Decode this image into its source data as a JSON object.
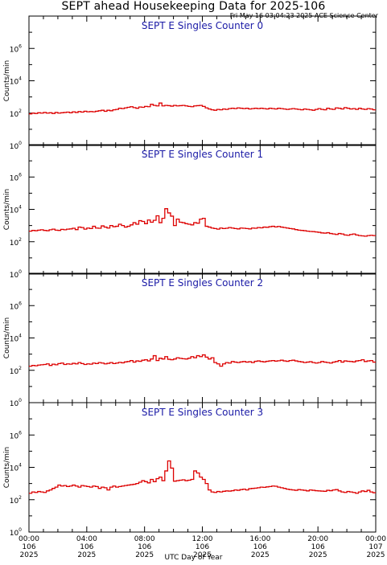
{
  "header": {
    "title": "SEPT ahead Housekeeping Data for 2025-106",
    "subtitle": "Fri May 16 03:04:23 2025 ACE Science Center"
  },
  "xaxis_label": "UTC Day of Year",
  "colors": {
    "series": "#dd0000",
    "panel_title": "#1a1aa6",
    "axes": "#000000"
  },
  "chart_data": [
    {
      "type": "line",
      "title": "SEPT E Singles Counter 0",
      "ylabel": "Counts/min",
      "yscale": "log",
      "ylim": [
        1,
        100000000
      ],
      "yticks": [
        {
          "exp": "0"
        },
        {
          "exp": "2"
        },
        {
          "exp": "4"
        },
        {
          "exp": "6"
        }
      ],
      "xlim": [
        0,
        24
      ],
      "xtick_labels": [
        [
          "00:00",
          "106",
          "2025"
        ],
        [
          "04:00",
          "106",
          "2025"
        ],
        [
          "08:00",
          "106",
          "2025"
        ],
        [
          "12:00",
          "106",
          "2025"
        ],
        [
          "16:00",
          "106",
          "2025"
        ],
        [
          "20:00",
          "106",
          "2025"
        ],
        [
          "00:00",
          "107",
          "2025"
        ]
      ],
      "series": [
        {
          "values": [
            90,
            100,
            95,
            105,
            100,
            110,
            100,
            105,
            95,
            110,
            100,
            105,
            110,
            115,
            105,
            120,
            110,
            125,
            115,
            130,
            120,
            125,
            120,
            130,
            140,
            150,
            130,
            150,
            140,
            160,
            170,
            200,
            190,
            210,
            230,
            250,
            220,
            200,
            240,
            230,
            260,
            250,
            350,
            300,
            280,
            420,
            280,
            300,
            290,
            270,
            300,
            280,
            290,
            300,
            280,
            260,
            250,
            280,
            290,
            300,
            260,
            210,
            180,
            160,
            150,
            170,
            160,
            180,
            170,
            190,
            200,
            190,
            210,
            200,
            190,
            200,
            180,
            190,
            200,
            190,
            200,
            190,
            180,
            200,
            190,
            180,
            200,
            190,
            180,
            170,
            180,
            190,
            180,
            170,
            160,
            180,
            170,
            160,
            150,
            170,
            190,
            170,
            160,
            200,
            180,
            170,
            210,
            200,
            180,
            220,
            200,
            180,
            190,
            170,
            200,
            180,
            170,
            190,
            180,
            160
          ]
        }
      ]
    },
    {
      "type": "line",
      "title": "SEPT E Singles Counter 1",
      "ylabel": "Counts/min",
      "yscale": "log",
      "ylim": [
        1,
        100000000
      ],
      "yticks": [
        {
          "exp": "0"
        },
        {
          "exp": "2"
        },
        {
          "exp": "4"
        },
        {
          "exp": "6"
        }
      ],
      "xlim": [
        0,
        24
      ],
      "xtick_labels": [
        [
          "00:00",
          "106",
          "2025"
        ],
        [
          "04:00",
          "106",
          "2025"
        ],
        [
          "08:00",
          "106",
          "2025"
        ],
        [
          "12:00",
          "106",
          "2025"
        ],
        [
          "16:00",
          "106",
          "2025"
        ],
        [
          "20:00",
          "106",
          "2025"
        ],
        [
          "00:00",
          "107",
          "2025"
        ]
      ],
      "series": [
        {
          "values": [
            450,
            500,
            480,
            520,
            550,
            500,
            480,
            550,
            600,
            520,
            500,
            580,
            550,
            600,
            620,
            680,
            560,
            800,
            750,
            600,
            700,
            650,
            900,
            700,
            680,
            950,
            800,
            700,
            1000,
            850,
            900,
            1200,
            1000,
            800,
            900,
            1100,
            1500,
            1200,
            2000,
            1800,
            1300,
            2200,
            1600,
            2100,
            4000,
            1500,
            2800,
            11000,
            6000,
            3800,
            1000,
            2500,
            1600,
            1500,
            1300,
            1200,
            1100,
            1500,
            1400,
            2500,
            2800,
            900,
            800,
            700,
            650,
            600,
            700,
            650,
            680,
            750,
            700,
            650,
            620,
            700,
            680,
            650,
            620,
            700,
            680,
            750,
            720,
            800,
            780,
            850,
            900,
            820,
            880,
            800,
            750,
            700,
            650,
            620,
            560,
            520,
            500,
            480,
            450,
            430,
            420,
            400,
            380,
            350,
            340,
            360,
            320,
            300,
            280,
            320,
            300,
            260,
            250,
            280,
            300,
            260,
            240,
            230,
            220,
            240,
            250,
            240
          ]
        }
      ]
    },
    {
      "type": "line",
      "title": "SEPT E Singles Counter 2",
      "ylabel": "Counts/min",
      "yscale": "log",
      "ylim": [
        1,
        100000000
      ],
      "yticks": [
        {
          "exp": "0"
        },
        {
          "exp": "2"
        },
        {
          "exp": "4"
        },
        {
          "exp": "6"
        }
      ],
      "xlim": [
        0,
        24
      ],
      "xtick_labels": [
        [
          "00:00",
          "106",
          "2025"
        ],
        [
          "04:00",
          "106",
          "2025"
        ],
        [
          "08:00",
          "106",
          "2025"
        ],
        [
          "12:00",
          "106",
          "2025"
        ],
        [
          "16:00",
          "106",
          "2025"
        ],
        [
          "20:00",
          "106",
          "2025"
        ],
        [
          "00:00",
          "107",
          "2025"
        ]
      ],
      "series": [
        {
          "values": [
            180,
            200,
            190,
            210,
            220,
            230,
            250,
            200,
            240,
            220,
            260,
            280,
            230,
            250,
            240,
            270,
            250,
            300,
            260,
            230,
            250,
            240,
            280,
            260,
            300,
            280,
            250,
            270,
            300,
            260,
            280,
            310,
            290,
            330,
            350,
            400,
            320,
            380,
            360,
            420,
            450,
            380,
            500,
            800,
            400,
            560,
            500,
            700,
            480,
            450,
            500,
            600,
            550,
            520,
            500,
            560,
            700,
            600,
            800,
            700,
            900,
            650,
            500,
            600,
            300,
            250,
            180,
            250,
            300,
            280,
            350,
            320,
            300,
            330,
            350,
            320,
            340,
            300,
            360,
            380,
            350,
            330,
            360,
            380,
            400,
            370,
            390,
            420,
            380,
            360,
            400,
            420,
            380,
            350,
            330,
            300,
            320,
            340,
            300,
            280,
            300,
            350,
            320,
            300,
            280,
            320,
            350,
            400,
            320,
            380,
            360,
            350,
            330,
            380,
            400,
            450,
            350,
            380,
            400,
            320
          ]
        }
      ]
    },
    {
      "type": "line",
      "title": "SEPT E Singles Counter 3",
      "ylabel": "Counts/min",
      "yscale": "log",
      "ylim": [
        1,
        100000000
      ],
      "yticks": [
        {
          "exp": "0"
        },
        {
          "exp": "2"
        },
        {
          "exp": "4"
        },
        {
          "exp": "6"
        }
      ],
      "xlim": [
        0,
        24
      ],
      "xtick_labels": [
        [
          "00:00",
          "106",
          "2025"
        ],
        [
          "04:00",
          "106",
          "2025"
        ],
        [
          "08:00",
          "106",
          "2025"
        ],
        [
          "12:00",
          "106",
          "2025"
        ],
        [
          "16:00",
          "106",
          "2025"
        ],
        [
          "20:00",
          "106",
          "2025"
        ],
        [
          "00:00",
          "107",
          "2025"
        ]
      ],
      "series": [
        {
          "values": [
            250,
            300,
            280,
            320,
            300,
            280,
            350,
            400,
            500,
            600,
            800,
            700,
            750,
            650,
            700,
            800,
            700,
            600,
            750,
            700,
            650,
            600,
            700,
            650,
            500,
            600,
            550,
            400,
            600,
            700,
            600,
            650,
            700,
            750,
            800,
            850,
            900,
            1000,
            1200,
            1500,
            1300,
            1100,
            1800,
            1300,
            2000,
            2500,
            1500,
            6000,
            25000,
            9000,
            1400,
            1500,
            1600,
            1700,
            1500,
            1600,
            1800,
            6000,
            4500,
            2500,
            1800,
            1000,
            400,
            300,
            280,
            320,
            300,
            330,
            350,
            340,
            360,
            400,
            380,
            420,
            450,
            400,
            480,
            500,
            520,
            550,
            600,
            580,
            620,
            650,
            700,
            680,
            600,
            550,
            500,
            450,
            420,
            400,
            380,
            420,
            400,
            380,
            350,
            400,
            380,
            360,
            350,
            340,
            330,
            380,
            360,
            400,
            420,
            350,
            300,
            280,
            320,
            300,
            280,
            250,
            300,
            350,
            320,
            380,
            300,
            270
          ]
        }
      ]
    }
  ]
}
